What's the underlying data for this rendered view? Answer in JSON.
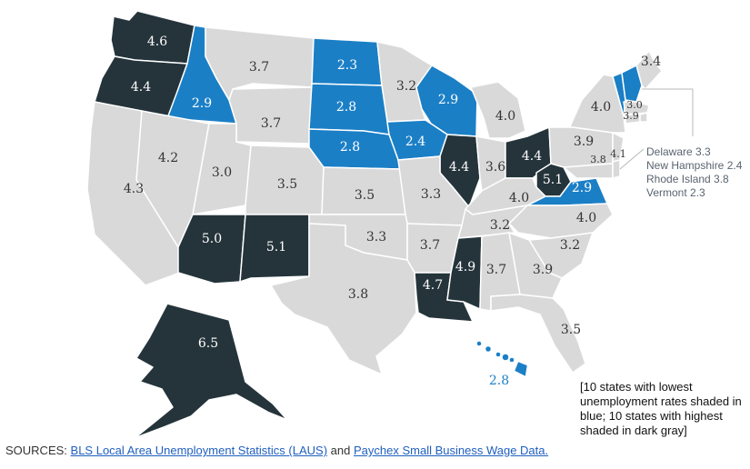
{
  "colors": {
    "low": "#1b7fc6",
    "high": "#25343b",
    "mid": "#d9d9d9",
    "label_on_dark": "#ffffff",
    "label_on_mid": "#333333",
    "leader": "#b8b8b8"
  },
  "states": [
    {
      "id": "WA",
      "value": "4.6",
      "group": "high"
    },
    {
      "id": "OR",
      "value": "4.4",
      "group": "high"
    },
    {
      "id": "ID",
      "value": "2.9",
      "group": "low"
    },
    {
      "id": "MT",
      "value": "3.7",
      "group": "mid"
    },
    {
      "id": "ND",
      "value": "2.3",
      "group": "low"
    },
    {
      "id": "MN",
      "value": "3.2",
      "group": "mid"
    },
    {
      "id": "WI",
      "value": "2.9",
      "group": "low"
    },
    {
      "id": "MI",
      "value": "4.0",
      "group": "mid"
    },
    {
      "id": "ME",
      "value": "3.4",
      "group": "mid"
    },
    {
      "id": "NY",
      "value": "4.0",
      "group": "mid"
    },
    {
      "id": "VT",
      "value": "",
      "group": "low"
    },
    {
      "id": "NH",
      "value": "",
      "group": "low"
    },
    {
      "id": "MA",
      "value": "3.0",
      "group": "mid"
    },
    {
      "id": "CT",
      "value": "3.9",
      "group": "mid"
    },
    {
      "id": "WY",
      "value": "3.7",
      "group": "mid"
    },
    {
      "id": "SD",
      "value": "2.8",
      "group": "low"
    },
    {
      "id": "IA",
      "value": "2.4",
      "group": "low"
    },
    {
      "id": "NE",
      "value": "2.8",
      "group": "low"
    },
    {
      "id": "IL",
      "value": "4.4",
      "group": "high"
    },
    {
      "id": "IN",
      "value": "3.6",
      "group": "mid"
    },
    {
      "id": "OH",
      "value": "4.4",
      "group": "high"
    },
    {
      "id": "PA",
      "value": "3.9",
      "group": "mid"
    },
    {
      "id": "NJ",
      "value": "4.1",
      "group": "mid"
    },
    {
      "id": "MD",
      "value": "3.8",
      "group": "mid"
    },
    {
      "id": "WV",
      "value": "5.1",
      "group": "high"
    },
    {
      "id": "VA",
      "value": "2.9",
      "group": "low"
    },
    {
      "id": "NV",
      "value": "4.2",
      "group": "mid"
    },
    {
      "id": "CA",
      "value": "4.3",
      "group": "mid"
    },
    {
      "id": "UT",
      "value": "3.0",
      "group": "mid"
    },
    {
      "id": "CO",
      "value": "3.5",
      "group": "mid"
    },
    {
      "id": "KS",
      "value": "3.5",
      "group": "mid"
    },
    {
      "id": "MO",
      "value": "3.3",
      "group": "mid"
    },
    {
      "id": "KY",
      "value": "4.0",
      "group": "mid"
    },
    {
      "id": "NC",
      "value": "4.0",
      "group": "mid"
    },
    {
      "id": "TN",
      "value": "3.2",
      "group": "mid"
    },
    {
      "id": "AZ",
      "value": "5.0",
      "group": "high"
    },
    {
      "id": "NM",
      "value": "5.1",
      "group": "high"
    },
    {
      "id": "OK",
      "value": "3.3",
      "group": "mid"
    },
    {
      "id": "AR",
      "value": "3.7",
      "group": "mid"
    },
    {
      "id": "SC",
      "value": "3.2",
      "group": "mid"
    },
    {
      "id": "TX",
      "value": "3.8",
      "group": "mid"
    },
    {
      "id": "LA",
      "value": "4.7",
      "group": "high"
    },
    {
      "id": "MS",
      "value": "4.9",
      "group": "high"
    },
    {
      "id": "AL",
      "value": "3.7",
      "group": "mid"
    },
    {
      "id": "GA",
      "value": "3.9",
      "group": "mid"
    },
    {
      "id": "FL",
      "value": "3.5",
      "group": "mid"
    },
    {
      "id": "AK",
      "value": "6.5",
      "group": "high"
    },
    {
      "id": "HI",
      "value": "2.8",
      "group": "low"
    },
    {
      "id": "DE",
      "value": "",
      "group": "mid"
    },
    {
      "id": "RI",
      "value": "",
      "group": "mid"
    }
  ],
  "callout": [
    {
      "label": "Delaware 3.3"
    },
    {
      "label": "New Hampshire 2.4"
    },
    {
      "label": "Rhode Island 3.8"
    },
    {
      "label": "Vermont 2.3"
    }
  ],
  "note": "[10 states with lowest unemployment rates shaded in blue; 10 states with highest shaded in dark gray]",
  "sources": {
    "prefix": "SOURCES:",
    "link1": "BLS Local Area Unemployment Statistics (LAUS)",
    "middle": "and",
    "link2": "Paychex Small Business Wage Data."
  }
}
